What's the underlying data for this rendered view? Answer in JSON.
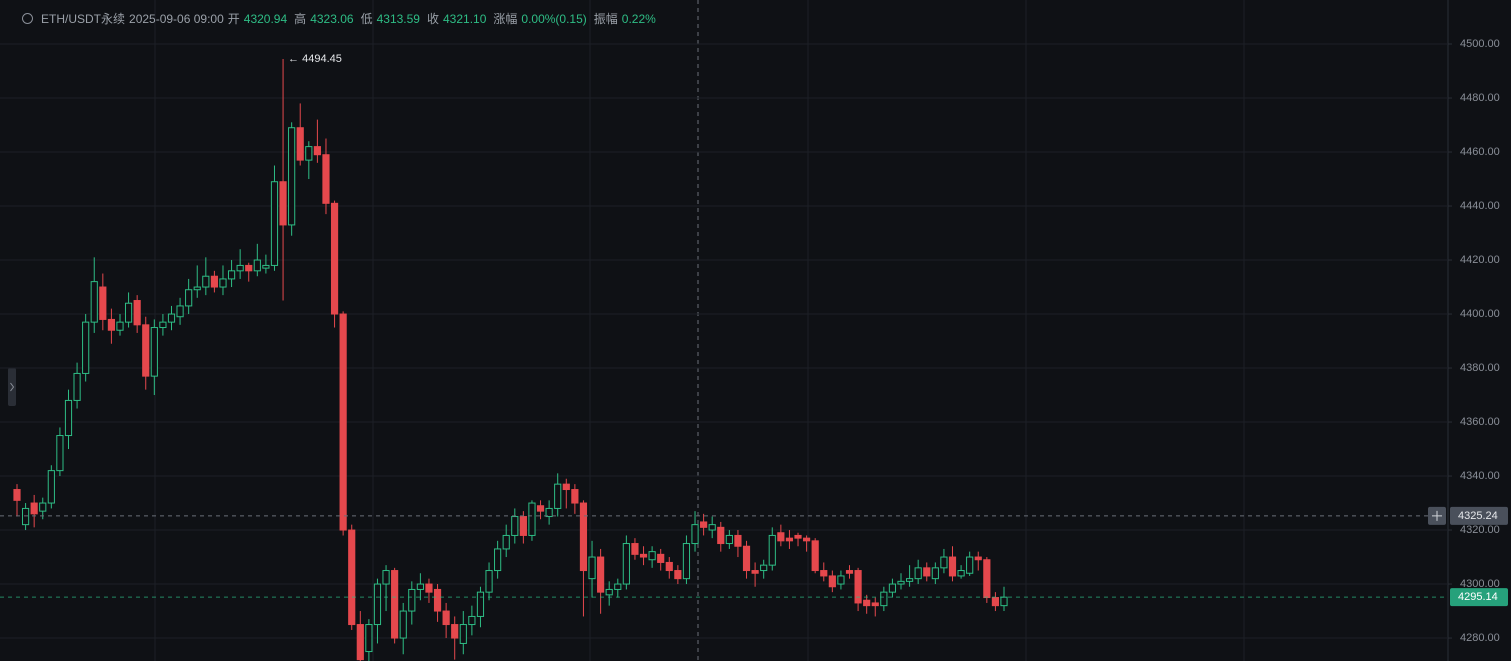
{
  "chart_data": {
    "type": "candlestick",
    "symbol": "ETH/USDT永续",
    "datetime": "2025-09-06 09:00",
    "info": [
      {
        "label": "开",
        "value": "4320.94"
      },
      {
        "label": "高",
        "value": "4323.06"
      },
      {
        "label": "低",
        "value": "4313.59"
      },
      {
        "label": "收",
        "value": "4321.10"
      },
      {
        "label": "涨幅",
        "value": "0.00%(0.15)"
      },
      {
        "label": "振幅",
        "value": "0.22%"
      }
    ],
    "up_color": "#2ebd85",
    "down_color": "#e5484d",
    "ylim": [
      4271.5,
      4516.3
    ],
    "yticks": [
      {
        "value": 4280,
        "label": "4280.00"
      },
      {
        "value": 4300,
        "label": "4300.00"
      },
      {
        "value": 4320,
        "label": "4320.00"
      },
      {
        "value": 4340,
        "label": "4340.00"
      },
      {
        "value": 4360,
        "label": "4360.00"
      },
      {
        "value": 4380,
        "label": "4380.00"
      },
      {
        "value": 4400,
        "label": "4400.00"
      },
      {
        "value": 4420,
        "label": "4420.00"
      },
      {
        "value": 4440,
        "label": "4440.00"
      },
      {
        "value": 4460,
        "label": "4460.00"
      },
      {
        "value": 4480,
        "label": "4480.00"
      },
      {
        "value": 4500,
        "label": "4500.00"
      }
    ],
    "grid": true,
    "annotation": {
      "value": 4494.45,
      "label": "← 4494.45"
    },
    "crosshair_price": 4325.24,
    "last_price": 4295.14,
    "open": [
      4335,
      4322,
      4330,
      4327,
      4330,
      4342,
      4355,
      4368,
      4378,
      4397,
      4410,
      4398,
      4394,
      4397,
      4405,
      4396,
      4377,
      4395,
      4397,
      4399,
      4403,
      4409,
      4410,
      4414,
      4410,
      4413,
      4416,
      4418,
      4416,
      4417,
      4418,
      4449,
      4433,
      4469,
      4457,
      4462,
      4459,
      4441,
      4400,
      4320,
      4285,
      4275,
      4285,
      4300,
      4305,
      4280,
      4290,
      4298,
      4300,
      4298,
      4290,
      4285,
      4278,
      4285,
      4288,
      4297,
      4305,
      4313,
      4318,
      4325,
      4318,
      4329,
      4325,
      4328,
      4337,
      4335,
      4330,
      4302,
      4310,
      4296,
      4298,
      4300,
      4315,
      4311,
      4309,
      4311,
      4308,
      4305,
      4302,
      4315,
      4323,
      4320,
      4321,
      4315,
      4318,
      4314,
      4305,
      4305,
      4307,
      4319,
      4317,
      4318,
      4317,
      4316,
      4305,
      4303,
      4300,
      4305,
      4305,
      4294,
      4293,
      4292,
      4297,
      4300,
      4301,
      4302,
      4306,
      4302,
      4306,
      4310,
      4303,
      4304,
      4310,
      4309,
      4295,
      4292
    ],
    "high": [
      4337,
      4330,
      4333,
      4332,
      4344,
      4358,
      4372,
      4382,
      4400,
      4421,
      4415,
      4402,
      4400,
      4408,
      4407,
      4399,
      4398,
      4400,
      4403,
      4406,
      4413,
      4418,
      4421,
      4416,
      4418,
      4420,
      4424,
      4419,
      4426,
      4422,
      4455,
      4494.45,
      4471,
      4478,
      4464,
      4472,
      4465,
      4442,
      4401,
      4322,
      4290,
      4287,
      4302,
      4307,
      4306,
      4293,
      4301,
      4304,
      4302,
      4300,
      4293,
      4288,
      4290,
      4292,
      4299,
      4308,
      4316,
      4322,
      4328,
      4327,
      4331,
      4331,
      4331,
      4341,
      4339,
      4337,
      4331,
      4316,
      4313,
      4301,
      4302,
      4318,
      4317,
      4314,
      4314,
      4313,
      4310,
      4307,
      4318,
      4327,
      4326,
      4325,
      4323,
      4320,
      4320,
      4316,
      4308,
      4309,
      4321,
      4322,
      4320,
      4319,
      4318,
      4317,
      4308,
      4305,
      4305,
      4307,
      4306,
      4296,
      4295,
      4299,
      4302,
      4304,
      4307,
      4309,
      4308,
      4308,
      4313,
      4314,
      4307,
      4312,
      4312,
      4310,
      4297,
      4299
    ],
    "low": [
      4325,
      4320,
      4321,
      4324,
      4328,
      4340,
      4350,
      4365,
      4375,
      4393,
      4394,
      4389,
      4392,
      4395,
      4393,
      4372,
      4370,
      4392,
      4394,
      4396,
      4400,
      4406,
      4407,
      4408,
      4407,
      4410,
      4413,
      4412,
      4414,
      4415,
      4416,
      4405,
      4429,
      4455,
      4450,
      4456,
      4437,
      4395,
      4318,
      4283,
      4268,
      4270,
      4278,
      4290,
      4278,
      4274,
      4285,
      4294,
      4293,
      4286,
      4280,
      4272,
      4274,
      4281,
      4284,
      4294,
      4302,
      4310,
      4315,
      4315,
      4316,
      4324,
      4322,
      4325,
      4328,
      4326,
      4288,
      4295,
      4289,
      4292,
      4295,
      4298,
      4309,
      4307,
      4306,
      4305,
      4302,
      4300,
      4300,
      4312,
      4318,
      4317,
      4312,
      4313,
      4310,
      4302,
      4299,
      4302,
      4305,
      4314,
      4313,
      4314,
      4312,
      4304,
      4301,
      4297,
      4298,
      4302,
      4290,
      4289,
      4288,
      4290,
      4295,
      4298,
      4299,
      4300,
      4301,
      4300,
      4304,
      4301,
      4302,
      4303,
      4305,
      4293,
      4290,
      4290
    ],
    "close": [
      4331,
      4328,
      4326,
      4330,
      4342,
      4355,
      4368,
      4378,
      4397,
      4412,
      4398,
      4394,
      4397,
      4404,
      4396,
      4377,
      4395,
      4397,
      4400,
      4403,
      4409,
      4410,
      4414,
      4410,
      4413,
      4416,
      4418,
      4416,
      4420,
      4418,
      4449,
      4433,
      4469,
      4457,
      4462,
      4459,
      4441,
      4400,
      4320,
      4285,
      4272,
      4285,
      4300,
      4305,
      4280,
      4290,
      4298,
      4300,
      4297,
      4290,
      4285,
      4280,
      4285,
      4288,
      4297,
      4305,
      4313,
      4318,
      4325,
      4318,
      4330,
      4327,
      4328,
      4337,
      4335,
      4330,
      4305,
      4310,
      4297,
      4298,
      4300,
      4315,
      4311,
      4310,
      4312,
      4308,
      4305,
      4302,
      4315,
      4322,
      4321,
      4322,
      4315,
      4318,
      4314,
      4305,
      4304,
      4307,
      4318,
      4316,
      4316,
      4317,
      4316,
      4305,
      4303,
      4299,
      4303,
      4304,
      4293,
      4292,
      4292,
      4297,
      4300,
      4301,
      4302,
      4306,
      4303,
      4306,
      4310,
      4303,
      4305,
      4310,
      4309,
      4295,
      4292,
      4295.14
    ]
  }
}
